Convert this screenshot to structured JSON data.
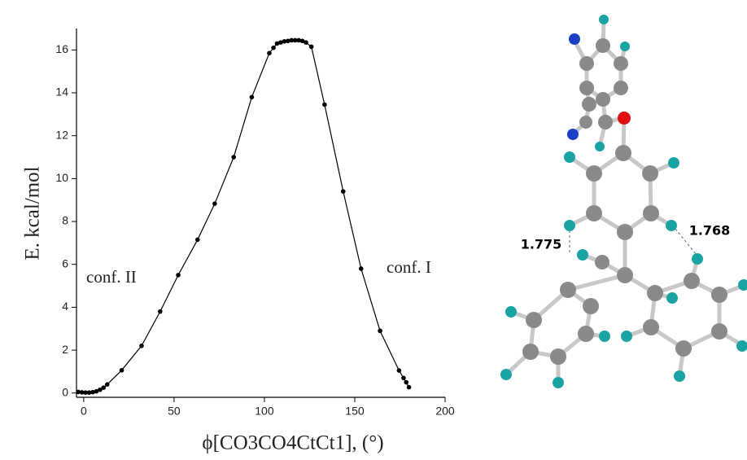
{
  "chart_data": {
    "type": "line",
    "x_label": "ϕ[CO3CO4CtCt1], (°)",
    "y_label": "E. kcal/mol",
    "annotations": [
      "conf. II",
      "conf. I"
    ],
    "color": "#000000",
    "xlim": [
      -4,
      200
    ],
    "ylim": [
      -0.2,
      17
    ],
    "xticks": [
      0,
      50,
      100,
      150,
      200
    ],
    "yticks": [
      0,
      2,
      4,
      6,
      8,
      10,
      12,
      14,
      16
    ],
    "x": [
      -3,
      -1,
      1,
      3,
      5,
      7,
      9,
      11,
      13,
      21,
      32,
      42.3,
      52.3,
      63,
      72.5,
      83,
      93,
      102.7,
      105,
      107,
      109,
      111,
      113,
      115,
      117,
      119,
      121,
      123,
      126,
      133.3,
      143.6,
      153.5,
      164,
      174.5,
      177,
      178.5,
      180
    ],
    "values": [
      0.05,
      0.03,
      0.02,
      0.02,
      0.04,
      0.08,
      0.15,
      0.25,
      0.4,
      1.06,
      2.2,
      3.8,
      5.5,
      7.15,
      8.83,
      11.0,
      13.8,
      15.85,
      16.1,
      16.3,
      16.35,
      16.4,
      16.42,
      16.45,
      16.45,
      16.45,
      16.42,
      16.35,
      16.15,
      13.45,
      9.4,
      5.8,
      2.9,
      1.05,
      0.7,
      0.5,
      0.27
    ]
  },
  "molecule": {
    "distance_labels": [
      "1.775",
      "1.768"
    ]
  }
}
